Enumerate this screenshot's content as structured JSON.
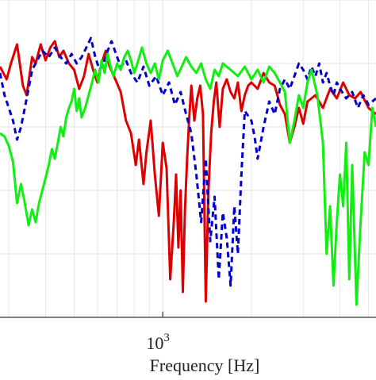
{
  "chart_data": {
    "type": "line",
    "xlabel": "Frequency [Hz]",
    "ylabel": "",
    "xscale": "log",
    "xlim": [
      280,
      5300
    ],
    "ylim": [
      0,
      1
    ],
    "grid": true,
    "tick_labels": [
      {
        "base": "10",
        "exponent": "3",
        "value": 1000
      }
    ],
    "series": [
      {
        "color": "#dd0000",
        "style": "solid",
        "points": [
          [
            280,
            0.79
          ],
          [
            295,
            0.75
          ],
          [
            305,
            0.8
          ],
          [
            320,
            0.86
          ],
          [
            335,
            0.73
          ],
          [
            345,
            0.7
          ],
          [
            360,
            0.82
          ],
          [
            370,
            0.8
          ],
          [
            385,
            0.86
          ],
          [
            400,
            0.81
          ],
          [
            415,
            0.85
          ],
          [
            430,
            0.87
          ],
          [
            445,
            0.82
          ],
          [
            460,
            0.84
          ],
          [
            480,
            0.8
          ],
          [
            500,
            0.78
          ],
          [
            520,
            0.72
          ],
          [
            540,
            0.76
          ],
          [
            560,
            0.83
          ],
          [
            580,
            0.78
          ],
          [
            600,
            0.74
          ],
          [
            620,
            0.8
          ],
          [
            640,
            0.84
          ],
          [
            660,
            0.79
          ],
          [
            690,
            0.75
          ],
          [
            720,
            0.71
          ],
          [
            750,
            0.62
          ],
          [
            780,
            0.58
          ],
          [
            810,
            0.48
          ],
          [
            830,
            0.56
          ],
          [
            860,
            0.42
          ],
          [
            880,
            0.52
          ],
          [
            910,
            0.62
          ],
          [
            940,
            0.45
          ],
          [
            970,
            0.32
          ],
          [
            1000,
            0.55
          ],
          [
            1030,
            0.47
          ],
          [
            1060,
            0.12
          ],
          [
            1090,
            0.3
          ],
          [
            1110,
            0.45
          ],
          [
            1130,
            0.22
          ],
          [
            1150,
            0.4
          ],
          [
            1170,
            0.08
          ],
          [
            1190,
            0.34
          ],
          [
            1210,
            0.5
          ],
          [
            1230,
            0.63
          ],
          [
            1250,
            0.73
          ],
          [
            1280,
            0.62
          ],
          [
            1310,
            0.69
          ],
          [
            1340,
            0.73
          ],
          [
            1370,
            0.64
          ],
          [
            1400,
            0.05
          ],
          [
            1430,
            0.4
          ],
          [
            1460,
            0.58
          ],
          [
            1490,
            0.68
          ],
          [
            1520,
            0.74
          ],
          [
            1560,
            0.6
          ],
          [
            1600,
            0.72
          ],
          [
            1650,
            0.75
          ],
          [
            1700,
            0.71
          ],
          [
            1750,
            0.69
          ],
          [
            1800,
            0.74
          ],
          [
            1850,
            0.65
          ],
          [
            1900,
            0.7
          ],
          [
            1950,
            0.73
          ],
          [
            2000,
            0.74
          ],
          [
            2100,
            0.72
          ],
          [
            2200,
            0.77
          ],
          [
            2300,
            0.74
          ],
          [
            2400,
            0.73
          ],
          [
            2500,
            0.67
          ],
          [
            2600,
            0.64
          ],
          [
            2700,
            0.55
          ],
          [
            2800,
            0.6
          ],
          [
            2900,
            0.66
          ],
          [
            3000,
            0.61
          ],
          [
            3100,
            0.68
          ],
          [
            3300,
            0.7
          ],
          [
            3500,
            0.66
          ],
          [
            3700,
            0.72
          ],
          [
            3900,
            0.69
          ],
          [
            4100,
            0.74
          ],
          [
            4300,
            0.7
          ],
          [
            4500,
            0.69
          ],
          [
            4700,
            0.71
          ],
          [
            5000,
            0.66
          ],
          [
            5300,
            0.64
          ]
        ]
      },
      {
        "color": "#0000cc",
        "style": "dashed",
        "points": [
          [
            280,
            0.77
          ],
          [
            290,
            0.7
          ],
          [
            300,
            0.66
          ],
          [
            310,
            0.62
          ],
          [
            320,
            0.56
          ],
          [
            330,
            0.6
          ],
          [
            340,
            0.66
          ],
          [
            350,
            0.72
          ],
          [
            360,
            0.78
          ],
          [
            375,
            0.81
          ],
          [
            390,
            0.84
          ],
          [
            410,
            0.82
          ],
          [
            430,
            0.85
          ],
          [
            450,
            0.82
          ],
          [
            470,
            0.8
          ],
          [
            490,
            0.83
          ],
          [
            510,
            0.8
          ],
          [
            530,
            0.82
          ],
          [
            550,
            0.85
          ],
          [
            570,
            0.88
          ],
          [
            590,
            0.82
          ],
          [
            610,
            0.78
          ],
          [
            630,
            0.8
          ],
          [
            650,
            0.84
          ],
          [
            670,
            0.87
          ],
          [
            700,
            0.82
          ],
          [
            720,
            0.79
          ],
          [
            750,
            0.81
          ],
          [
            780,
            0.77
          ],
          [
            820,
            0.74
          ],
          [
            860,
            0.79
          ],
          [
            900,
            0.73
          ],
          [
            950,
            0.76
          ],
          [
            1000,
            0.7
          ],
          [
            1050,
            0.74
          ],
          [
            1100,
            0.67
          ],
          [
            1150,
            0.71
          ],
          [
            1200,
            0.64
          ],
          [
            1250,
            0.58
          ],
          [
            1300,
            0.45
          ],
          [
            1350,
            0.3
          ],
          [
            1400,
            0.5
          ],
          [
            1450,
            0.24
          ],
          [
            1500,
            0.38
          ],
          [
            1550,
            0.12
          ],
          [
            1600,
            0.33
          ],
          [
            1650,
            0.25
          ],
          [
            1700,
            0.1
          ],
          [
            1750,
            0.35
          ],
          [
            1800,
            0.2
          ],
          [
            1850,
            0.45
          ],
          [
            1900,
            0.65
          ],
          [
            2000,
            0.62
          ],
          [
            2050,
            0.57
          ],
          [
            2100,
            0.5
          ],
          [
            2200,
            0.6
          ],
          [
            2300,
            0.68
          ],
          [
            2400,
            0.64
          ],
          [
            2500,
            0.72
          ],
          [
            2600,
            0.75
          ],
          [
            2700,
            0.72
          ],
          [
            2800,
            0.76
          ],
          [
            2900,
            0.8
          ],
          [
            3000,
            0.78
          ],
          [
            3100,
            0.75
          ],
          [
            3200,
            0.79
          ],
          [
            3300,
            0.76
          ],
          [
            3400,
            0.8
          ],
          [
            3500,
            0.74
          ],
          [
            3600,
            0.77
          ],
          [
            3700,
            0.73
          ],
          [
            3800,
            0.7
          ],
          [
            3900,
            0.74
          ],
          [
            4000,
            0.72
          ],
          [
            4200,
            0.69
          ],
          [
            4400,
            0.71
          ],
          [
            4600,
            0.66
          ],
          [
            4800,
            0.7
          ],
          [
            5000,
            0.67
          ],
          [
            5300,
            0.69
          ]
        ]
      },
      {
        "color": "#11ee11",
        "style": "solid",
        "points": [
          [
            280,
            0.58
          ],
          [
            290,
            0.57
          ],
          [
            300,
            0.54
          ],
          [
            310,
            0.49
          ],
          [
            320,
            0.36
          ],
          [
            330,
            0.42
          ],
          [
            340,
            0.36
          ],
          [
            350,
            0.29
          ],
          [
            360,
            0.34
          ],
          [
            370,
            0.3
          ],
          [
            380,
            0.36
          ],
          [
            390,
            0.4
          ],
          [
            400,
            0.44
          ],
          [
            410,
            0.48
          ],
          [
            420,
            0.53
          ],
          [
            430,
            0.5
          ],
          [
            440,
            0.55
          ],
          [
            450,
            0.6
          ],
          [
            460,
            0.57
          ],
          [
            470,
            0.63
          ],
          [
            480,
            0.66
          ],
          [
            490,
            0.68
          ],
          [
            500,
            0.72
          ],
          [
            510,
            0.65
          ],
          [
            520,
            0.69
          ],
          [
            530,
            0.63
          ],
          [
            545,
            0.66
          ],
          [
            560,
            0.7
          ],
          [
            575,
            0.74
          ],
          [
            590,
            0.78
          ],
          [
            605,
            0.74
          ],
          [
            620,
            0.81
          ],
          [
            635,
            0.77
          ],
          [
            650,
            0.83
          ],
          [
            665,
            0.79
          ],
          [
            680,
            0.76
          ],
          [
            700,
            0.8
          ],
          [
            720,
            0.78
          ],
          [
            740,
            0.82
          ],
          [
            760,
            0.84
          ],
          [
            780,
            0.81
          ],
          [
            800,
            0.77
          ],
          [
            820,
            0.8
          ],
          [
            850,
            0.85
          ],
          [
            880,
            0.8
          ],
          [
            910,
            0.77
          ],
          [
            940,
            0.8
          ],
          [
            970,
            0.75
          ],
          [
            1000,
            0.81
          ],
          [
            1040,
            0.84
          ],
          [
            1080,
            0.8
          ],
          [
            1120,
            0.76
          ],
          [
            1160,
            0.79
          ],
          [
            1200,
            0.82
          ],
          [
            1250,
            0.79
          ],
          [
            1300,
            0.77
          ],
          [
            1350,
            0.8
          ],
          [
            1400,
            0.75
          ],
          [
            1450,
            0.72
          ],
          [
            1500,
            0.78
          ],
          [
            1550,
            0.76
          ],
          [
            1600,
            0.8
          ],
          [
            1700,
            0.78
          ],
          [
            1800,
            0.76
          ],
          [
            1900,
            0.79
          ],
          [
            2000,
            0.75
          ],
          [
            2100,
            0.78
          ],
          [
            2200,
            0.74
          ],
          [
            2300,
            0.79
          ],
          [
            2400,
            0.77
          ],
          [
            2500,
            0.74
          ],
          [
            2600,
            0.71
          ],
          [
            2700,
            0.55
          ],
          [
            2800,
            0.62
          ],
          [
            2900,
            0.7
          ],
          [
            3000,
            0.66
          ],
          [
            3100,
            0.74
          ],
          [
            3200,
            0.78
          ],
          [
            3350,
            0.7
          ],
          [
            3500,
            0.55
          ],
          [
            3600,
            0.2
          ],
          [
            3700,
            0.35
          ],
          [
            3800,
            0.1
          ],
          [
            3900,
            0.3
          ],
          [
            4000,
            0.45
          ],
          [
            4100,
            0.35
          ],
          [
            4200,
            0.55
          ],
          [
            4300,
            0.12
          ],
          [
            4400,
            0.48
          ],
          [
            4550,
            0.04
          ],
          [
            4700,
            0.3
          ],
          [
            4850,
            0.52
          ],
          [
            5000,
            0.48
          ],
          [
            5150,
            0.66
          ],
          [
            5300,
            0.6
          ]
        ]
      }
    ]
  }
}
